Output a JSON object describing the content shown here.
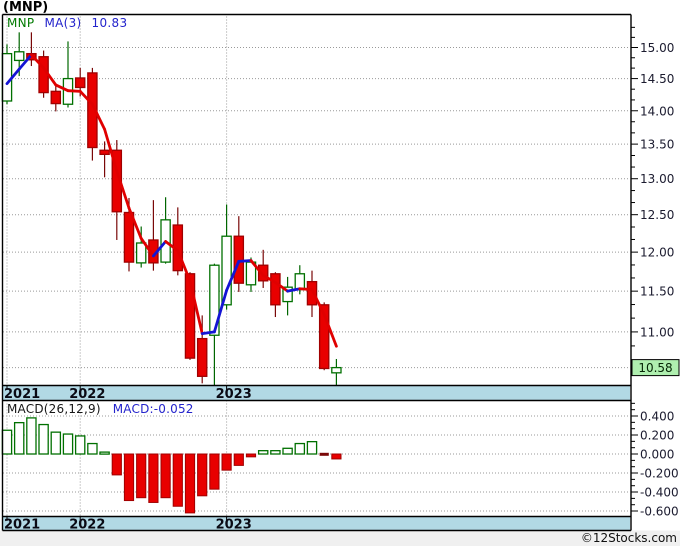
{
  "title": "(MNP)",
  "price_legend": {
    "symbol": "MNP",
    "ma_label": "MA(3)",
    "ma_value": "10.83"
  },
  "macd_legend": {
    "label": "MACD(26,12,9)",
    "value": "MACD:-0.052"
  },
  "footer": "©12Stocks.com",
  "colors": {
    "candle_up_stroke": "#007000",
    "candle_up_fill": "#ffffff",
    "candle_down_fill": "#e80000",
    "candle_down_stroke": "#a00000",
    "wick_up": "#006600",
    "wick_down": "#7a0808",
    "ma_up": "#1414d4",
    "ma_down": "#e00000",
    "band": "#b2d9e5",
    "last_price_bg": "#afefaf",
    "grid": "#999999",
    "axis_text": "#1b1b2f",
    "year_text": "#0a0a14",
    "footer_bg": "#f0f0f0",
    "border": "#000000"
  },
  "chart_data": {
    "type": "candlestick",
    "symbol": "MNP",
    "title": "(MNP)",
    "scale": "log",
    "panels": [
      "price",
      "macd-histogram"
    ],
    "price_axis_ticks": [
      "15.00",
      "14.50",
      "14.00",
      "13.50",
      "13.00",
      "12.50",
      "12.00",
      "11.50",
      "11.00"
    ],
    "last_price_label": "10.58",
    "last_price": 10.58,
    "x_years": [
      {
        "label": "2021",
        "candle_index": 0
      },
      {
        "label": "2022",
        "candle_index": 6
      },
      {
        "label": "2023",
        "candle_index": 18
      }
    ],
    "candles_ohlc": [
      [
        14.15,
        15.05,
        14.1,
        14.9
      ],
      [
        14.79,
        15.25,
        14.54,
        14.93
      ],
      [
        14.9,
        15.25,
        14.7,
        14.8
      ],
      [
        14.85,
        14.95,
        14.2,
        14.28
      ],
      [
        14.3,
        14.38,
        13.99,
        14.11
      ],
      [
        14.1,
        15.1,
        14.05,
        14.5
      ],
      [
        14.51,
        14.67,
        14.22,
        14.36
      ],
      [
        14.59,
        14.67,
        13.26,
        13.45
      ],
      [
        13.41,
        13.54,
        13.02,
        13.35
      ],
      [
        13.41,
        13.56,
        12.16,
        12.54
      ],
      [
        12.53,
        12.73,
        11.75,
        11.87
      ],
      [
        11.86,
        12.34,
        11.8,
        12.12
      ],
      [
        12.16,
        12.7,
        11.76,
        11.86
      ],
      [
        11.87,
        12.74,
        11.85,
        12.43
      ],
      [
        12.36,
        12.6,
        11.7,
        11.76
      ],
      [
        11.72,
        11.74,
        10.67,
        10.69
      ],
      [
        10.92,
        11.2,
        10.4,
        10.48
      ],
      [
        10.96,
        11.85,
        10.31,
        11.83
      ],
      [
        11.33,
        12.64,
        11.27,
        12.21
      ],
      [
        12.21,
        12.48,
        11.49,
        11.6
      ],
      [
        11.58,
        11.93,
        11.49,
        11.87
      ],
      [
        11.83,
        12.03,
        11.54,
        11.63
      ],
      [
        11.72,
        11.74,
        11.18,
        11.33
      ],
      [
        11.37,
        11.68,
        11.2,
        11.55
      ],
      [
        11.52,
        11.83,
        11.46,
        11.72
      ],
      [
        11.62,
        11.76,
        11.18,
        11.33
      ],
      [
        11.33,
        11.36,
        10.55,
        10.57
      ],
      [
        10.52,
        10.68,
        10.34,
        10.58
      ]
    ],
    "ma3": [
      14.42,
      14.65,
      14.88,
      14.67,
      14.4,
      14.31,
      14.3,
      14.1,
      13.72,
      13.11,
      12.59,
      12.18,
      11.95,
      12.14,
      12.02,
      11.63,
      10.98,
      11.0,
      11.51,
      11.88,
      11.89,
      11.7,
      11.61,
      11.5,
      11.53,
      11.52,
      11.21,
      10.83
    ],
    "macd_axis_ticks": [
      "0.400",
      "0.200",
      "0.000",
      "-0.200",
      "-0.400",
      "-0.600"
    ],
    "macd_values": [
      0.25,
      0.33,
      0.38,
      0.31,
      0.23,
      0.21,
      0.19,
      0.11,
      0.02,
      -0.22,
      -0.49,
      -0.46,
      -0.51,
      -0.46,
      -0.55,
      -0.62,
      -0.44,
      -0.37,
      -0.17,
      -0.12,
      -0.03,
      0.035,
      0.035,
      0.06,
      0.11,
      0.13,
      -0.01,
      -0.052
    ]
  }
}
